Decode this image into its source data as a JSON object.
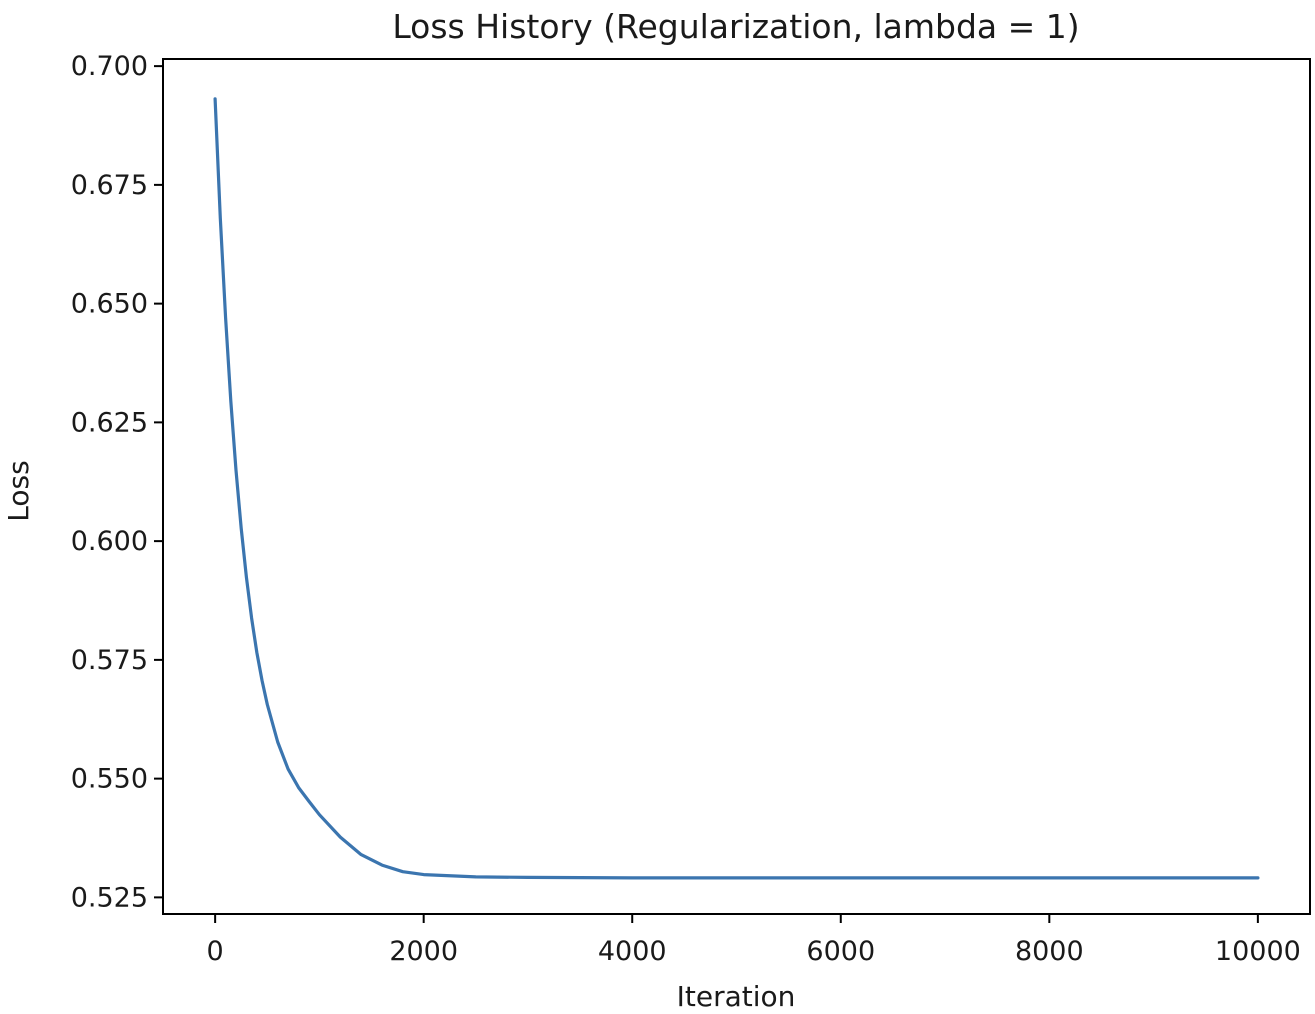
{
  "chart_data": {
    "type": "line",
    "title": "Loss History (Regularization, lambda = 1)",
    "xlabel": "Iteration",
    "ylabel": "Loss",
    "xlim": [
      -500,
      10500
    ],
    "ylim": [
      0.5215,
      0.7015
    ],
    "xticks": [
      0,
      2000,
      4000,
      6000,
      8000,
      10000
    ],
    "xtick_labels": [
      "0",
      "2000",
      "4000",
      "6000",
      "8000",
      "10000"
    ],
    "yticks": [
      0.525,
      0.55,
      0.575,
      0.6,
      0.625,
      0.65,
      0.675,
      0.7
    ],
    "ytick_labels": [
      "0.525",
      "0.550",
      "0.575",
      "0.600",
      "0.625",
      "0.650",
      "0.675",
      "0.700"
    ],
    "grid": false,
    "series": [
      {
        "color": "#3b75af",
        "x": [
          0,
          50,
          100,
          150,
          200,
          250,
          300,
          350,
          400,
          450,
          500,
          600,
          700,
          800,
          900,
          1000,
          1200,
          1400,
          1600,
          1800,
          2000,
          2500,
          3000,
          4000,
          5000,
          6000,
          7000,
          8000,
          9000,
          10000
        ],
        "y": [
          0.6931,
          0.668,
          0.647,
          0.6295,
          0.6149,
          0.6027,
          0.5924,
          0.5838,
          0.5766,
          0.5706,
          0.5656,
          0.5577,
          0.552,
          0.5481,
          0.5452,
          0.5424,
          0.5377,
          0.534,
          0.5318,
          0.5304,
          0.5298,
          0.5293,
          0.5292,
          0.5291,
          0.5291,
          0.5291,
          0.5291,
          0.5291,
          0.5291,
          0.5291
        ]
      }
    ]
  }
}
